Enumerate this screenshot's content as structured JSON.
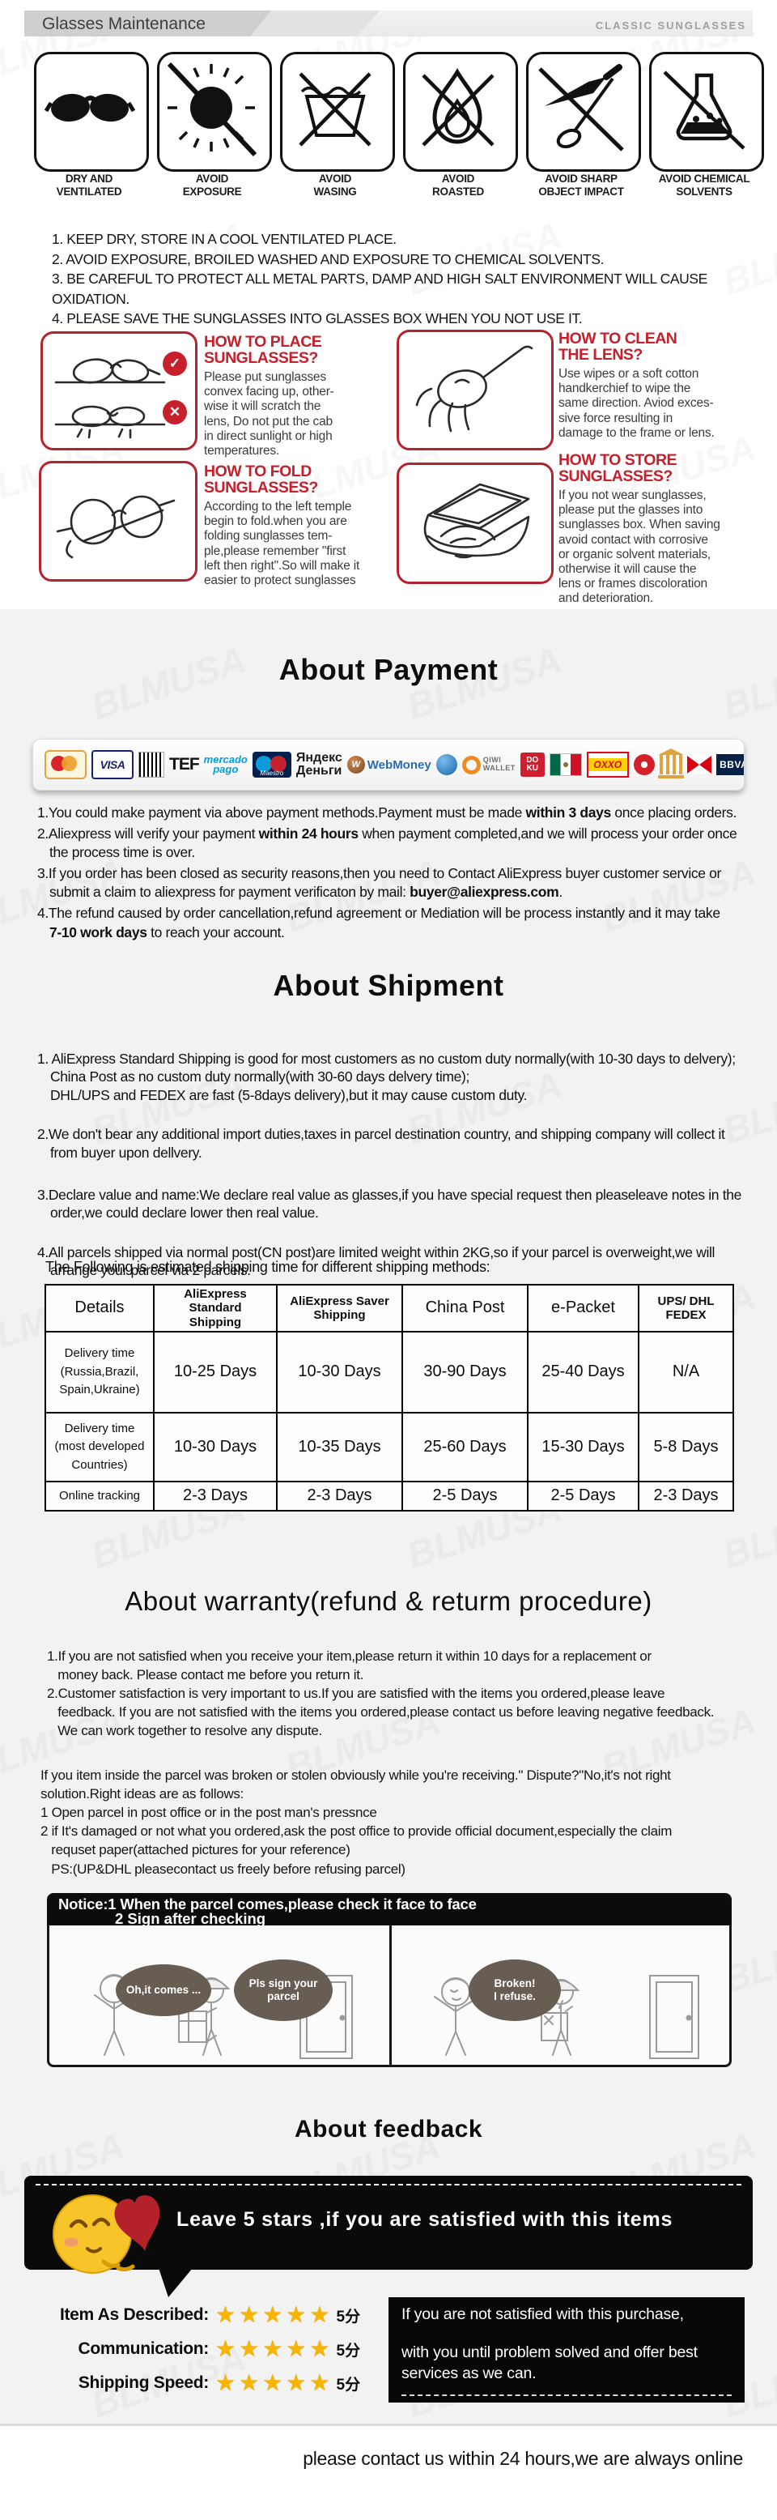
{
  "header": {
    "title": "Glasses Maintenance",
    "right_label": "CLASSIC SUNGLASSES"
  },
  "maintenance": {
    "icons": [
      {
        "name": "sunglasses-icon",
        "label": "DRY AND\nVENTILATED"
      },
      {
        "name": "no-sun-exposure-icon",
        "label": "AVOID\nEXPOSURE"
      },
      {
        "name": "no-washing-icon",
        "label": "AVOID\nWASING"
      },
      {
        "name": "no-fire-icon",
        "label": "AVOID\nROASTED"
      },
      {
        "name": "no-sharp-objects-icon",
        "label": "AVOID SHARP\nOBJECT IMPACT"
      },
      {
        "name": "no-chemicals-icon",
        "label": "AVOID CHEMICAL\nSOLVENTS"
      }
    ],
    "rules": "1. KEEP DRY, STORE IN A COOL VENTILATED PLACE.\n2. AVOID EXPOSURE, BROILED WASHED AND EXPOSURE TO CHEMICAL SOLVENTS.\n3. BE CAREFUL TO PROTECT ALL METAL PARTS, DAMP AND HIGH SALT ENVIRONMENT WILL CAUSE OXIDATION.\n4. PLEASE SAVE THE SUNGLASSES INTO GLASSES BOX WHEN YOU NOT USE IT."
  },
  "howto": {
    "check_glyph": "✓",
    "cross_glyph": "✕",
    "items": [
      {
        "title": "HOW TO PLACE\nSUNGLASSES?",
        "body": "Please put sunglasses\nconvex facing up, other-\nwise it will scratch the\nlens, Do not put the cab\nin direct sunlight or high\ntemperatures."
      },
      {
        "title": "HOW TO CLEAN\nTHE LENS?",
        "body": "Use wipes or a soft cotton\nhandkerchief to wipe the\nsame direction. Aviod exces-\nsive force resulting in\ndamage to the frame or lens."
      },
      {
        "title": "HOW TO FOLD\nSUNGLASSES?",
        "body": "According to the left temple\nbegin to fold.when you are\nfolding sunglasses tem-\nple,please remember \"first\nleft then right\".So will make it\neasier to protect sunglasses"
      },
      {
        "title": "HOW TO STORE\nSUNGLASSES?",
        "body": "If you not wear sunglasses,\nplease put the glasses into\nsunglasses box. When saving\navoid contact with corrosive\nor organic solvent materials,\notherwise it will cause the\nlens or frames discoloration\nand deterioration."
      }
    ]
  },
  "payment": {
    "heading": "About Payment",
    "logos": [
      {
        "id": "mastercard-logo",
        "text": ""
      },
      {
        "id": "visa-logo",
        "text": "VISA"
      },
      {
        "id": "boleto-barcode-logo",
        "text": ""
      },
      {
        "id": "tef-logo",
        "text": "TEF"
      },
      {
        "id": "mercado-pago-logo",
        "text": "mercado\npago"
      },
      {
        "id": "maestro-logo",
        "text": "Maestro"
      },
      {
        "id": "yandex-money-logo",
        "text": "Яндекс\nДеньги"
      },
      {
        "id": "webmoney-logo",
        "text": "WebMoney"
      },
      {
        "id": "globe-logo",
        "text": ""
      },
      {
        "id": "qiwi-wallet-logo",
        "text": "QIWI\nWALLET"
      },
      {
        "id": "doku-logo",
        "text": "DO\nKU"
      },
      {
        "id": "mexico-flag-logo",
        "text": ""
      },
      {
        "id": "oxxo-logo",
        "text": "OXXO"
      },
      {
        "id": "rosette-logo",
        "text": ""
      },
      {
        "id": "bank-logo",
        "text": ""
      },
      {
        "id": "hsbc-logo",
        "text": ""
      },
      {
        "id": "bbva-logo",
        "text": "BBVA"
      },
      {
        "id": "santander-logo",
        "text": ""
      }
    ],
    "notes": [
      {
        "segs": [
          {
            "t": "1.You could make payment via above payment methods.Payment must be made ",
            "b": false
          },
          {
            "t": "within 3 days",
            "b": true
          },
          {
            "t": " once placing orders.",
            "b": false
          }
        ]
      },
      {
        "segs": [
          {
            "t": "2.Aliexpress will verify your payment ",
            "b": false
          },
          {
            "t": "within 24 hours",
            "b": true
          },
          {
            "t": " when payment completed,and we will process your order once\nthe process time is over.",
            "b": false
          }
        ]
      },
      {
        "segs": [
          {
            "t": "3.If you order has been closed as security reasons,then you need to Contact AliExpress buyer customer service or\nsubmit a claim to aliexpress for payment verificaton by mail: ",
            "b": false
          },
          {
            "t": "buyer@aliexpress.com",
            "b": true
          },
          {
            "t": ".",
            "b": false
          }
        ]
      },
      {
        "segs": [
          {
            "t": "4.The refund caused by order cancellation,refund agreement or Mediation will be process instantly and it may take\n",
            "b": false
          },
          {
            "t": "7-10 work days",
            "b": true
          },
          {
            "t": " to reach your account.",
            "b": false
          }
        ]
      }
    ]
  },
  "shipment": {
    "heading": "About Shipment",
    "notes": [
      "1. AliExpress Standard Shipping is good for most customers as no custom duty normally(with 10-30 days to delvery);\nChina Post as no custom duty normally(with 30-60 days delvery time);\nDHL/UPS and FEDEX are fast (5-8days delivery),but it may cause custom duty.",
      "2.We don't bear any additional import duties,taxes in parcel destination country, and shipping company will collect it\nfrom buyer upon dellvery.",
      "3.Declare value and name:We declare real value as glasses,if you have special request then pleaseleave notes in the\norder,we could declare lower then real value.",
      "4.All parcels shipped via normal post(CN post)are limited weight within 2KG,so if your parcel is overweight,we will\narrange your parcel via 2 parcels."
    ],
    "table_intro": "The Following is estimated shipping time for different shipping methods:",
    "table": {
      "headers": [
        "Details",
        "AliExpress Standard\nShipping",
        "AliExpress Saver\nShipping",
        "China Post",
        "e-Packet",
        "UPS/ DHL\nFEDEX"
      ],
      "rows": [
        [
          "Delivery time\n(Russia,Brazil,\nSpain,Ukraine)",
          "10-25 Days",
          "10-30 Days",
          "30-90 Days",
          "25-40 Days",
          "N/A"
        ],
        [
          "Delivery time\n(most developed\nCountries)",
          "10-30 Days",
          "10-35 Days",
          "25-60 Days",
          "15-30 Days",
          "5-8 Days"
        ],
        [
          "Online tracking",
          "2-3 Days",
          "2-3 Days",
          "2-5 Days",
          "2-5 Days",
          "2-3 Days"
        ]
      ]
    }
  },
  "warranty": {
    "heading": "About warranty(refund & returm procedure)",
    "lines": "1.If you are not satisfied when you receive your item,please return it within 10 days for a replacement or\n   money back. Please contact me before you return it.\n2.Customer satisfaction is very important to us.If you are satisfied with the items you ordered,please leave\n   feedback. If you are not satisfied with the items you ordered,please contact us before leaving negative feedback.\n   We can work together to resolve any dispute.",
    "dispute": "If you item inside the parcel was broken or stolen obviously while you're receiving.\" Dispute?\"No,it's not right\nsolution.Right ideas are as follows:\n1 Open parcel in post office or in the post man's pressnce\n2 if It's damaged or not what you ordered,ask the post office to provide official document,especially the claim\n   requset paper(attached pictures for your reference)\n   PS:(UP&DHL pleasecontact us freely before refusing parcel)"
  },
  "notice": {
    "line1": "Notice:1 When the parcel comes,please check it face to face",
    "line2": "2 Sign after checking",
    "bubbles": [
      "Oh,it comes ...",
      "Pls sign your\nparcel",
      "Broken!\nI refuse."
    ]
  },
  "feedback": {
    "heading": "About feedback",
    "banner": "Leave 5 stars ,if you are satisfied with this items",
    "ratings": [
      {
        "label": "Item As Described:",
        "stars": "★★★★★",
        "score": "5分"
      },
      {
        "label": "Communication:",
        "stars": "★★★★★",
        "score": "5分"
      },
      {
        "label": "Shipping Speed:",
        "stars": "★★★★★",
        "score": "5分"
      }
    ],
    "promise_line1": "If you are not satisfied with this purchase,",
    "promise_line2": "with you until problem solved and offer best\nservices as we can.",
    "footer": "please contact us within 24 hours,we are always online"
  },
  "watermark": "BLMUSA",
  "colors": {
    "accent_red": "#c5202b",
    "panel_gray": "#f2f2f2",
    "star_gold": "#f7b500"
  }
}
